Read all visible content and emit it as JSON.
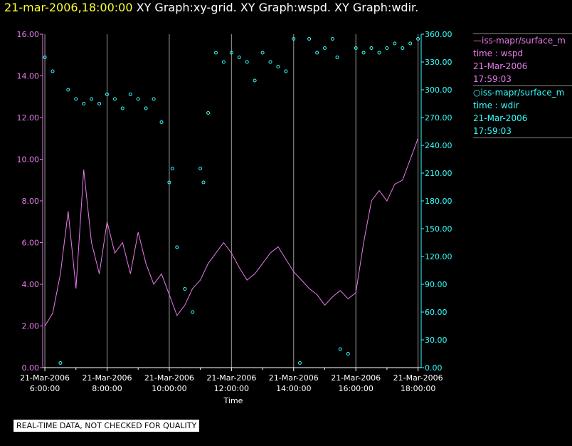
{
  "header": {
    "timestamp": "21-mar-2006,18:00:00",
    "titles": "XY Graph:xy-grid.  XY Graph:wspd.  XY Graph:wdir."
  },
  "colors": {
    "background": "#000000",
    "wspd": "#e87be8",
    "wdir": "#33ffff",
    "grid": "#9a9a9a",
    "left_axis": "#e87be8",
    "right_axis": "#33ffff",
    "timestamp": "#ffff33"
  },
  "legend": [
    {
      "prefix": "—",
      "name": "iss-mapr/surface_m",
      "line2": "time : wspd",
      "date": "21-Mar-2006",
      "time": "17:59:03",
      "color": "#e87be8"
    },
    {
      "prefix": "○",
      "name": "iss-mapr/surface_m",
      "line2": "time : wdir",
      "date": "21-Mar-2006",
      "time": "17:59:03",
      "color": "#33ffff"
    }
  ],
  "footnote": "REAL-TIME DATA, NOT CHECKED FOR QUALITY",
  "chart_data": {
    "type": "line",
    "xlabel": "Time",
    "xlim": [
      5.93,
      18.1
    ],
    "x_ticks": [
      {
        "value": 6,
        "label": [
          "21-Mar-2006",
          "6:00:00"
        ]
      },
      {
        "value": 8,
        "label": [
          "21-Mar-2006",
          "8:00:00"
        ]
      },
      {
        "value": 10,
        "label": [
          "21-Mar-2006",
          "10:00:00"
        ]
      },
      {
        "value": 12,
        "label": [
          "21-Mar-2006",
          "12:00:00"
        ]
      },
      {
        "value": 14,
        "label": [
          "21-Mar-2006",
          "14:00:00"
        ]
      },
      {
        "value": 16,
        "label": [
          "21-Mar-2006",
          "16:00:00"
        ]
      },
      {
        "value": 18,
        "label": [
          "21-Mar-2006",
          "18:00:00"
        ]
      }
    ],
    "y_left": {
      "ylim": [
        0,
        16
      ],
      "ticks": [
        "0.00",
        "2.00",
        "4.00",
        "6.00",
        "8.00",
        "10.00",
        "12.00",
        "14.00",
        "16.00"
      ]
    },
    "y_right": {
      "ylim": [
        0,
        360
      ],
      "ticks": [
        "0.00",
        "30.00",
        "60.00",
        "90.00",
        "120.00",
        "150.00",
        "180.00",
        "210.00",
        "240.00",
        "270.00",
        "300.00",
        "330.00",
        "360.00"
      ]
    },
    "grid": "vertical",
    "series": [
      {
        "name": "time : wspd",
        "style": "line",
        "axis": "left",
        "x": [
          6.0,
          6.25,
          6.5,
          6.75,
          7.0,
          7.25,
          7.5,
          7.75,
          8.0,
          8.25,
          8.5,
          8.75,
          9.0,
          9.25,
          9.5,
          9.75,
          10.0,
          10.25,
          10.5,
          10.75,
          11.0,
          11.25,
          11.5,
          11.75,
          12.0,
          12.25,
          12.5,
          12.75,
          13.0,
          13.25,
          13.5,
          13.75,
          14.0,
          14.25,
          14.5,
          14.75,
          15.0,
          15.25,
          15.5,
          15.75,
          16.0,
          16.25,
          16.5,
          16.75,
          17.0,
          17.25,
          17.5,
          17.75,
          18.0
        ],
        "y": [
          2.0,
          2.6,
          4.5,
          7.5,
          3.8,
          9.5,
          6.0,
          4.5,
          7.0,
          5.5,
          6.0,
          4.5,
          6.5,
          5.0,
          4.0,
          4.5,
          3.5,
          2.5,
          3.0,
          3.8,
          4.2,
          5.0,
          5.5,
          6.0,
          5.5,
          4.8,
          4.2,
          4.5,
          5.0,
          5.5,
          5.8,
          5.2,
          4.6,
          4.2,
          3.8,
          3.5,
          3.0,
          3.4,
          3.7,
          3.3,
          3.6,
          6.0,
          8.0,
          8.5,
          8.0,
          8.8,
          9.0,
          10.0,
          11.0
        ]
      },
      {
        "name": "time : wdir",
        "style": "scatter",
        "axis": "right",
        "x": [
          6.0,
          6.25,
          6.5,
          6.75,
          7.0,
          7.25,
          7.5,
          7.75,
          8.0,
          8.25,
          8.5,
          8.75,
          9.0,
          9.25,
          9.5,
          9.75,
          10.0,
          10.1,
          10.25,
          10.5,
          10.75,
          11.0,
          11.1,
          11.25,
          11.5,
          11.75,
          12.0,
          12.25,
          12.5,
          12.75,
          13.0,
          13.25,
          13.5,
          13.75,
          14.0,
          14.2,
          14.5,
          14.75,
          15.0,
          15.25,
          15.4,
          15.5,
          15.75,
          16.0,
          16.25,
          16.5,
          16.75,
          17.0,
          17.25,
          17.5,
          17.75,
          18.0
        ],
        "y": [
          335,
          320,
          5,
          300,
          290,
          285,
          290,
          285,
          295,
          290,
          280,
          295,
          290,
          280,
          290,
          265,
          200,
          215,
          130,
          85,
          60,
          215,
          200,
          275,
          340,
          330,
          340,
          335,
          330,
          310,
          340,
          330,
          325,
          320,
          355,
          5,
          355,
          340,
          345,
          355,
          335,
          20,
          15,
          345,
          340,
          345,
          340,
          345,
          350,
          345,
          350,
          355
        ]
      }
    ]
  }
}
